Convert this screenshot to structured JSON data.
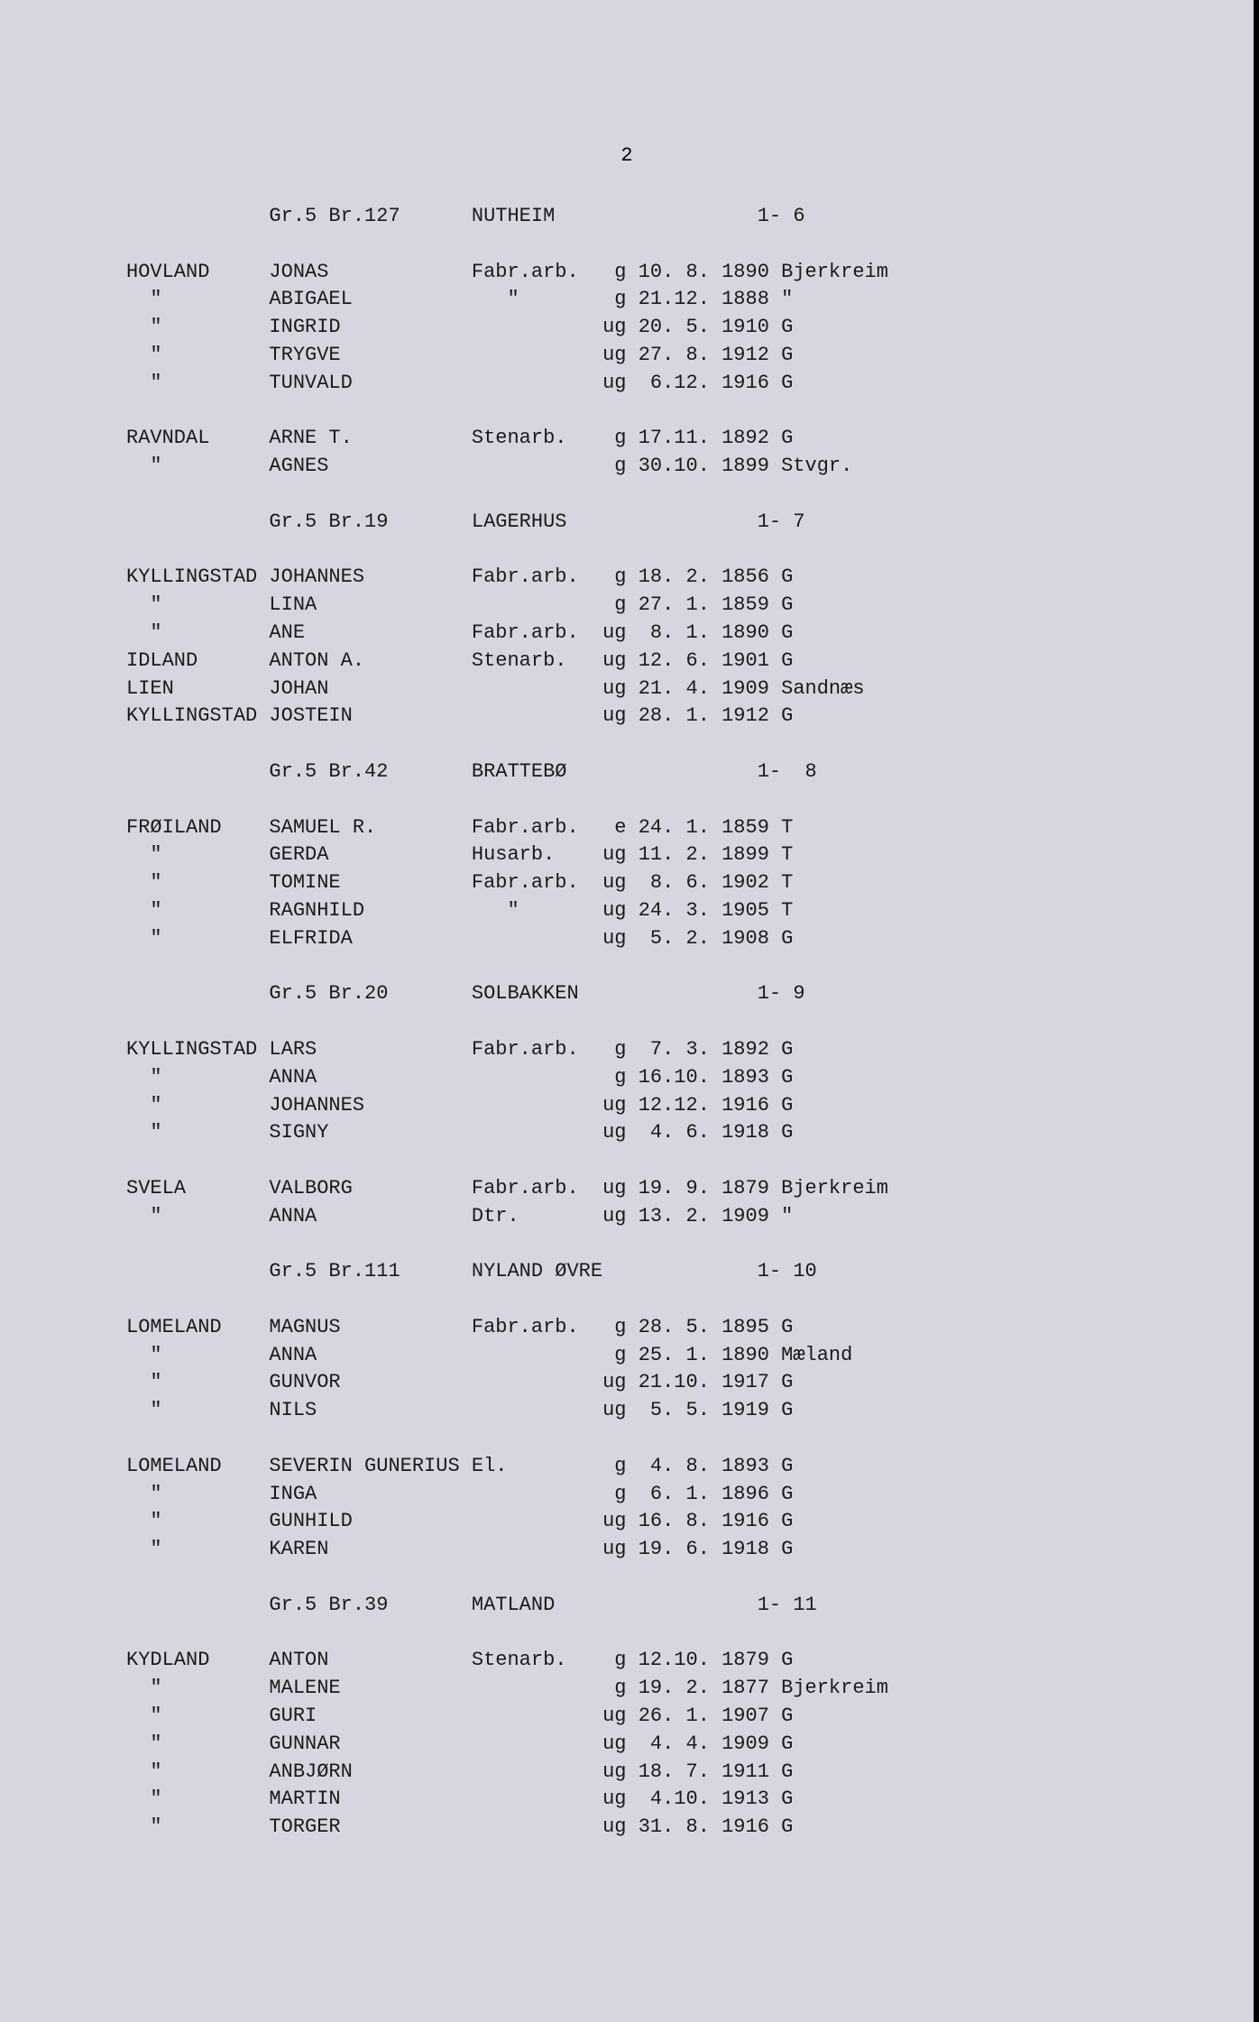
{
  "page_number": "2",
  "background_color": "#d8d5e0",
  "text_color": "#1a1a1a",
  "font_family": "Courier New",
  "font_size": 22,
  "sections": [
    {
      "header": {
        "gr": "Gr.5 Br.127",
        "place": "NUTHEIM",
        "ref": "1- 6"
      },
      "groups": [
        [
          {
            "surname": "HOVLAND",
            "given": "JONAS",
            "occupation": "Fabr.arb.",
            "status": "g",
            "date": "10. 8.",
            "year": "1890",
            "origin": "Bjerkreim"
          },
          {
            "surname": "\"",
            "given": "ABIGAEL",
            "occupation": "\"",
            "status": "g",
            "date": "21.12.",
            "year": "1888",
            "origin": "\""
          },
          {
            "surname": "\"",
            "given": "INGRID",
            "occupation": "",
            "status": "ug",
            "date": "20. 5.",
            "year": "1910",
            "origin": "G"
          },
          {
            "surname": "\"",
            "given": "TRYGVE",
            "occupation": "",
            "status": "ug",
            "date": "27. 8.",
            "year": "1912",
            "origin": "G"
          },
          {
            "surname": "\"",
            "given": "TUNVALD",
            "occupation": "",
            "status": "ug",
            "date": " 6.12.",
            "year": "1916",
            "origin": "G"
          }
        ],
        [
          {
            "surname": "RAVNDAL",
            "given": "ARNE T.",
            "occupation": "Stenarb.",
            "status": "g",
            "date": "17.11.",
            "year": "1892",
            "origin": "G"
          },
          {
            "surname": "\"",
            "given": "AGNES",
            "occupation": "",
            "status": "g",
            "date": "30.10.",
            "year": "1899",
            "origin": "Stvgr."
          }
        ]
      ]
    },
    {
      "header": {
        "gr": "Gr.5 Br.19",
        "place": "LAGERHUS",
        "ref": "1- 7"
      },
      "groups": [
        [
          {
            "surname": "KYLLINGSTAD",
            "given": "JOHANNES",
            "occupation": "Fabr.arb.",
            "status": "g",
            "date": "18. 2.",
            "year": "1856",
            "origin": "G"
          },
          {
            "surname": "\"",
            "given": "LINA",
            "occupation": "",
            "status": "g",
            "date": "27. 1.",
            "year": "1859",
            "origin": "G"
          },
          {
            "surname": "\"",
            "given": "ANE",
            "occupation": "Fabr.arb.",
            "status": "ug",
            "date": " 8. 1.",
            "year": "1890",
            "origin": "G"
          },
          {
            "surname": "IDLAND",
            "given": "ANTON A.",
            "occupation": "Stenarb.",
            "status": "ug",
            "date": "12. 6.",
            "year": "1901",
            "origin": "G"
          },
          {
            "surname": "LIEN",
            "given": "JOHAN",
            "occupation": "",
            "status": "ug",
            "date": "21. 4.",
            "year": "1909",
            "origin": "Sandnæs"
          },
          {
            "surname": "KYLLINGSTAD",
            "given": "JOSTEIN",
            "occupation": "",
            "status": "ug",
            "date": "28. 1.",
            "year": "1912",
            "origin": "G"
          }
        ]
      ]
    },
    {
      "header": {
        "gr": "Gr.5 Br.42",
        "place": "BRATTEBØ",
        "ref": "1-  8"
      },
      "groups": [
        [
          {
            "surname": "FRØILAND",
            "given": "SAMUEL R.",
            "occupation": "Fabr.arb.",
            "status": "e",
            "date": "24. 1.",
            "year": "1859",
            "origin": "T"
          },
          {
            "surname": "\"",
            "given": "GERDA",
            "occupation": "Husarb.",
            "status": "ug",
            "date": "11. 2.",
            "year": "1899",
            "origin": "T"
          },
          {
            "surname": "\"",
            "given": "TOMINE",
            "occupation": "Fabr.arb.",
            "status": "ug",
            "date": " 8. 6.",
            "year": "1902",
            "origin": "T"
          },
          {
            "surname": "\"",
            "given": "RAGNHILD",
            "occupation": "\"",
            "status": "ug",
            "date": "24. 3.",
            "year": "1905",
            "origin": "T"
          },
          {
            "surname": "\"",
            "given": "ELFRIDA",
            "occupation": "",
            "status": "ug",
            "date": " 5. 2.",
            "year": "1908",
            "origin": "G"
          }
        ]
      ]
    },
    {
      "header": {
        "gr": "Gr.5 Br.20",
        "place": "SOLBAKKEN",
        "ref": "1- 9"
      },
      "groups": [
        [
          {
            "surname": "KYLLINGSTAD",
            "given": "LARS",
            "occupation": "Fabr.arb.",
            "status": "g",
            "date": " 7. 3.",
            "year": "1892",
            "origin": "G"
          },
          {
            "surname": "\"",
            "given": "ANNA",
            "occupation": "",
            "status": "g",
            "date": "16.10.",
            "year": "1893",
            "origin": "G"
          },
          {
            "surname": "\"",
            "given": "JOHANNES",
            "occupation": "",
            "status": "ug",
            "date": "12.12.",
            "year": "1916",
            "origin": "G"
          },
          {
            "surname": "\"",
            "given": "SIGNY",
            "occupation": "",
            "status": "ug",
            "date": " 4. 6.",
            "year": "1918",
            "origin": "G"
          }
        ],
        [
          {
            "surname": "SVELA",
            "given": "VALBORG",
            "occupation": "Fabr.arb.",
            "status": "ug",
            "date": "19. 9.",
            "year": "1879",
            "origin": "Bjerkreim"
          },
          {
            "surname": "\"",
            "given": "ANNA",
            "occupation": "Dtr.",
            "status": "ug",
            "date": "13. 2.",
            "year": "1909",
            "origin": "\""
          }
        ]
      ]
    },
    {
      "header": {
        "gr": "Gr.5 Br.111",
        "place": "NYLAND ØVRE",
        "ref": "1- 10"
      },
      "groups": [
        [
          {
            "surname": "LOMELAND",
            "given": "MAGNUS",
            "occupation": "Fabr.arb.",
            "status": "g",
            "date": "28. 5.",
            "year": "1895",
            "origin": "G"
          },
          {
            "surname": "\"",
            "given": "ANNA",
            "occupation": "",
            "status": "g",
            "date": "25. 1.",
            "year": "1890",
            "origin": "Mæland"
          },
          {
            "surname": "\"",
            "given": "GUNVOR",
            "occupation": "",
            "status": "ug",
            "date": "21.10.",
            "year": "1917",
            "origin": "G"
          },
          {
            "surname": "\"",
            "given": "NILS",
            "occupation": "",
            "status": "ug",
            "date": " 5. 5.",
            "year": "1919",
            "origin": "G"
          }
        ],
        [
          {
            "surname": "LOMELAND",
            "given": "SEVERIN GUNERIUS",
            "occupation": "El.",
            "status": "g",
            "date": " 4. 8.",
            "year": "1893",
            "origin": "G"
          },
          {
            "surname": "\"",
            "given": "INGA",
            "occupation": "",
            "status": "g",
            "date": " 6. 1.",
            "year": "1896",
            "origin": "G"
          },
          {
            "surname": "\"",
            "given": "GUNHILD",
            "occupation": "",
            "status": "ug",
            "date": "16. 8.",
            "year": "1916",
            "origin": "G"
          },
          {
            "surname": "\"",
            "given": "KAREN",
            "occupation": "",
            "status": "ug",
            "date": "19. 6.",
            "year": "1918",
            "origin": "G"
          }
        ]
      ]
    },
    {
      "header": {
        "gr": "Gr.5 Br.39",
        "place": "MATLAND",
        "ref": "1- 11"
      },
      "groups": [
        [
          {
            "surname": "KYDLAND",
            "given": "ANTON",
            "occupation": "Stenarb.",
            "status": "g",
            "date": "12.10.",
            "year": "1879",
            "origin": "G"
          },
          {
            "surname": "\"",
            "given": "MALENE",
            "occupation": "",
            "status": "g",
            "date": "19. 2.",
            "year": "1877",
            "origin": "Bjerkreim"
          },
          {
            "surname": "\"",
            "given": "GURI",
            "occupation": "",
            "status": "ug",
            "date": "26. 1.",
            "year": "1907",
            "origin": "G"
          },
          {
            "surname": "\"",
            "given": "GUNNAR",
            "occupation": "",
            "status": "ug",
            "date": " 4. 4.",
            "year": "1909",
            "origin": "G"
          },
          {
            "surname": "\"",
            "given": "ANBJØRN",
            "occupation": "",
            "status": "ug",
            "date": "18. 7.",
            "year": "1911",
            "origin": "G"
          },
          {
            "surname": "\"",
            "given": "MARTIN",
            "occupation": "",
            "status": "ug",
            "date": " 4.10.",
            "year": "1913",
            "origin": "G"
          },
          {
            "surname": "\"",
            "given": "TORGER",
            "occupation": "",
            "status": "ug",
            "date": "31. 8.",
            "year": "1916",
            "origin": "G"
          }
        ]
      ]
    }
  ]
}
